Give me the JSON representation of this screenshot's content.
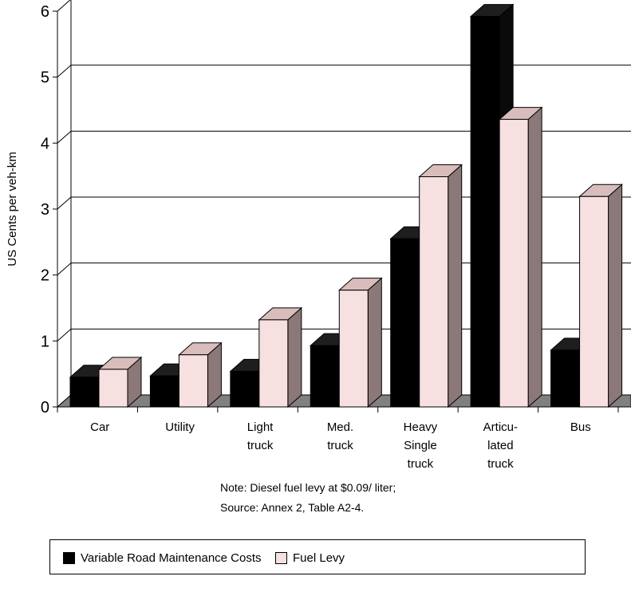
{
  "chart_data": {
    "type": "bar",
    "categories": [
      [
        "Car"
      ],
      [
        "Utility"
      ],
      [
        "Light",
        "truck"
      ],
      [
        "Med.",
        "truck"
      ],
      [
        "Heavy",
        "Single",
        "truck"
      ],
      [
        "Articu-",
        "lated",
        "truck"
      ],
      [
        "Bus"
      ]
    ],
    "series": [
      {
        "name": "Variable Road Maintenance Costs",
        "values": [
          0.45,
          0.47,
          0.54,
          0.93,
          2.55,
          5.92,
          0.86
        ],
        "color": "#000000"
      },
      {
        "name": "Fuel Levy",
        "values": [
          0.57,
          0.79,
          1.32,
          1.77,
          3.49,
          4.36,
          3.19
        ],
        "color": "#f7e0e0"
      }
    ],
    "ylabel": "US Cents per veh-km",
    "xlabel": "",
    "ylim": [
      0,
      6
    ],
    "yticks": [
      "0",
      "1",
      "2",
      "3",
      "4",
      "5",
      "6"
    ],
    "grid": true,
    "legend_position": "bottom",
    "notes": [
      "Note: Diesel fuel levy at $0.09/ liter;",
      "Source:  Annex 2, Table A2-4."
    ]
  }
}
